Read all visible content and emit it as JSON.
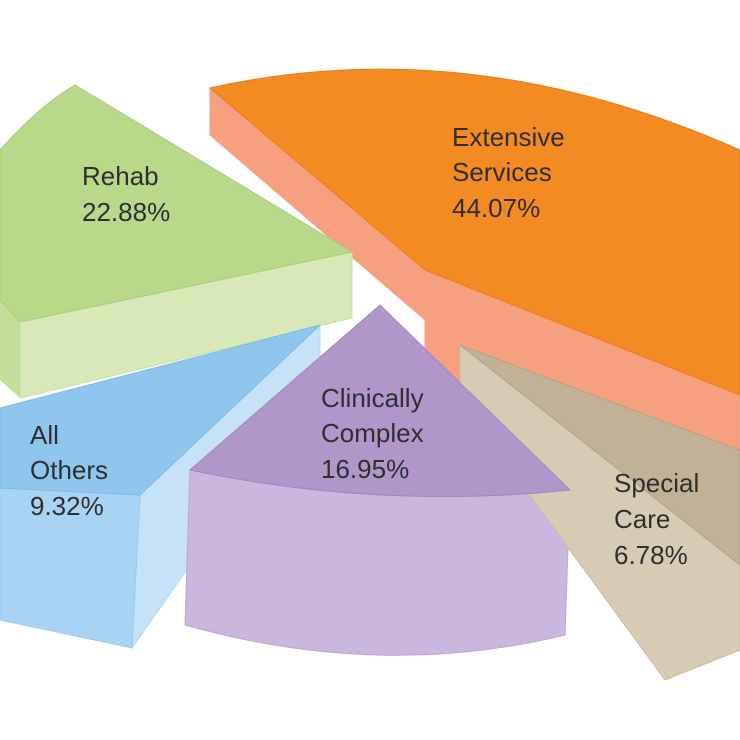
{
  "chart_data": {
    "type": "pie",
    "title": "",
    "slices": [
      {
        "label_lines": [
          "Extensive",
          "Services"
        ],
        "value": 44.07,
        "value_label": "44.07%",
        "color": "#f48a22",
        "side_color": "#f7a07f"
      },
      {
        "label_lines": [
          "Rehab"
        ],
        "value": 22.88,
        "value_label": "22.88%",
        "color": "#b8d98a",
        "side_color": "#d8e9b7"
      },
      {
        "label_lines": [
          "All",
          "Others"
        ],
        "value": 9.32,
        "value_label": "9.32%",
        "color": "#8ec6ee",
        "side_color": "#c5e2f7"
      },
      {
        "label_lines": [
          "Clinically",
          "Complex"
        ],
        "value": 16.95,
        "value_label": "16.95%",
        "color": "#b196c9",
        "side_color": "#cbb7de"
      },
      {
        "label_lines": [
          "Special",
          "Care"
        ],
        "value": 6.78,
        "value_label": "6.78%",
        "color": "#c2b295",
        "side_color": "#d8cbb3"
      }
    ]
  }
}
